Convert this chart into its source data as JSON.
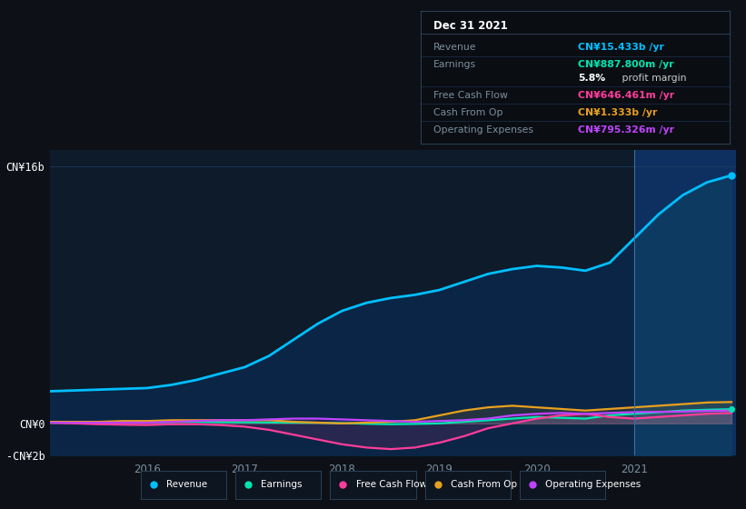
{
  "background_color": "#0d1117",
  "plot_bg_color": "#0d1b2a",
  "highlight_fill_color": "#0d3060",
  "divide_x": 2021.0,
  "years": [
    2015.0,
    2015.25,
    2015.5,
    2015.75,
    2016.0,
    2016.25,
    2016.5,
    2016.75,
    2017.0,
    2017.25,
    2017.5,
    2017.75,
    2018.0,
    2018.25,
    2018.5,
    2018.75,
    2019.0,
    2019.25,
    2019.5,
    2019.75,
    2020.0,
    2020.25,
    2020.5,
    2020.75,
    2021.0,
    2021.25,
    2021.5,
    2021.75,
    2022.0
  ],
  "revenue": [
    2.0,
    2.05,
    2.1,
    2.15,
    2.2,
    2.4,
    2.7,
    3.1,
    3.5,
    4.2,
    5.2,
    6.2,
    7.0,
    7.5,
    7.8,
    8.0,
    8.3,
    8.8,
    9.3,
    9.6,
    9.8,
    9.7,
    9.5,
    10.0,
    11.5,
    13.0,
    14.2,
    15.0,
    15.433
  ],
  "earnings": [
    0.05,
    0.06,
    0.07,
    0.08,
    0.08,
    0.09,
    0.1,
    0.08,
    0.07,
    0.06,
    0.05,
    0.04,
    0.02,
    -0.02,
    -0.05,
    -0.03,
    0.0,
    0.1,
    0.2,
    0.3,
    0.4,
    0.35,
    0.3,
    0.5,
    0.6,
    0.7,
    0.8,
    0.85,
    0.888
  ],
  "free_cash_flow": [
    0.05,
    0.0,
    -0.05,
    -0.08,
    -0.1,
    -0.05,
    -0.05,
    -0.1,
    -0.2,
    -0.4,
    -0.7,
    -1.0,
    -1.3,
    -1.5,
    -1.6,
    -1.5,
    -1.2,
    -0.8,
    -0.3,
    0.0,
    0.3,
    0.5,
    0.6,
    0.4,
    0.3,
    0.4,
    0.5,
    0.6,
    0.646
  ],
  "cash_from_op": [
    0.1,
    0.1,
    0.1,
    0.15,
    0.15,
    0.2,
    0.2,
    0.2,
    0.2,
    0.2,
    0.1,
    0.05,
    0.0,
    0.05,
    0.1,
    0.2,
    0.5,
    0.8,
    1.0,
    1.1,
    1.0,
    0.9,
    0.8,
    0.9,
    1.0,
    1.1,
    1.2,
    1.3,
    1.333
  ],
  "operating_expenses": [
    0.05,
    0.05,
    0.05,
    0.05,
    0.05,
    0.1,
    0.15,
    0.2,
    0.2,
    0.25,
    0.3,
    0.3,
    0.25,
    0.2,
    0.15,
    0.1,
    0.15,
    0.2,
    0.3,
    0.5,
    0.6,
    0.65,
    0.6,
    0.65,
    0.7,
    0.72,
    0.74,
    0.78,
    0.795
  ],
  "revenue_color": "#00bfff",
  "earnings_color": "#00e5b0",
  "free_cash_flow_color": "#ff3d9a",
  "cash_from_op_color": "#e8a020",
  "operating_expenses_color": "#bf44ff",
  "fill_color_left": "#0a2545",
  "fill_color_right": "#0d3a60",
  "ylim_min": -2.0,
  "ylim_max": 17.0,
  "ytick_labels": [
    "CN¥16b",
    "CN¥0",
    "-CN¥2b"
  ],
  "ytick_values": [
    16,
    0,
    -2
  ],
  "xtick_labels": [
    "2016",
    "2017",
    "2018",
    "2019",
    "2020",
    "2021"
  ],
  "xtick_values": [
    2016,
    2017,
    2018,
    2019,
    2020,
    2021
  ],
  "info_box_title": "Dec 31 2021",
  "info_rows": [
    {
      "label": "Revenue",
      "value": "CN¥15.433b /yr",
      "vcolor": "#00bfff",
      "sep_after": true
    },
    {
      "label": "Earnings",
      "value": "CN¥887.800m /yr",
      "vcolor": "#00e5b0",
      "sep_after": false
    },
    {
      "label": "",
      "value": "5.8%",
      "vcolor": "#ffffff",
      "suffix": " profit margin",
      "sep_after": true
    },
    {
      "label": "Free Cash Flow",
      "value": "CN¥646.461m /yr",
      "vcolor": "#ff3d9a",
      "sep_after": true
    },
    {
      "label": "Cash From Op",
      "value": "CN¥1.333b /yr",
      "vcolor": "#e8a020",
      "sep_after": true
    },
    {
      "label": "Operating Expenses",
      "value": "CN¥795.326m /yr",
      "vcolor": "#bf44ff",
      "sep_after": false
    }
  ],
  "legend": [
    {
      "label": "Revenue",
      "color": "#00bfff"
    },
    {
      "label": "Earnings",
      "color": "#00e5b0"
    },
    {
      "label": "Free Cash Flow",
      "color": "#ff3d9a"
    },
    {
      "label": "Cash From Op",
      "color": "#e8a020"
    },
    {
      "label": "Operating Expenses",
      "color": "#bf44ff"
    }
  ]
}
